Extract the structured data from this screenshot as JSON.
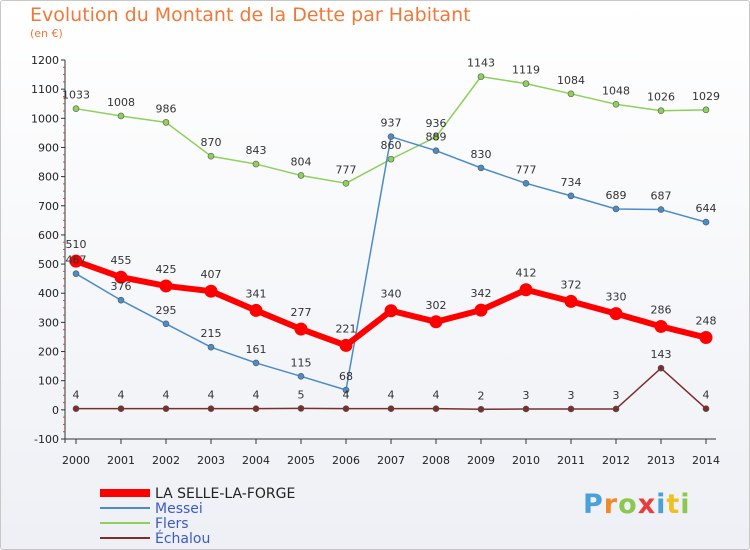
{
  "chart_data": {
    "type": "line",
    "title": "Evolution du Montant de la Dette par Habitant",
    "subtitle": "(en €)",
    "x": [
      "2000",
      "2001",
      "2002",
      "2003",
      "2004",
      "2005",
      "2006",
      "2007",
      "2008",
      "2009",
      "2010",
      "2011",
      "2012",
      "2013",
      "2014"
    ],
    "ylim": [
      -100,
      1200
    ],
    "yticks": [
      -100,
      0,
      100,
      200,
      300,
      400,
      500,
      600,
      700,
      800,
      900,
      1000,
      1100,
      1200
    ],
    "grid": false,
    "legend_position": "bottom-left",
    "series": [
      {
        "name": "LA SELLE-LA-FORGE",
        "color": "#ff0000",
        "values": [
          510,
          455,
          425,
          407,
          341,
          277,
          221,
          340,
          302,
          342,
          412,
          372,
          330,
          286,
          248
        ]
      },
      {
        "name": "Messei",
        "color": "#4a8cc8",
        "values": [
          467,
          376,
          295,
          215,
          161,
          115,
          68,
          937,
          889,
          830,
          777,
          734,
          689,
          687,
          644
        ],
        "labels": [
          "467",
          "376",
          "295",
          "215",
          "161",
          "115",
          "68",
          "937",
          "889",
          "830",
          "777",
          "734",
          "689",
          "687",
          "644"
        ]
      },
      {
        "name": "Flers",
        "color": "#8ed05a",
        "values": [
          1033,
          1008,
          986,
          870,
          843,
          804,
          777,
          860,
          936,
          1143,
          1119,
          1084,
          1048,
          1026,
          1029
        ]
      },
      {
        "name": "Échalou",
        "color": "#7a2e2e",
        "values": [
          4,
          4,
          4,
          4,
          4,
          5,
          4,
          4,
          4,
          2,
          3,
          3,
          3,
          143,
          4
        ]
      }
    ]
  },
  "logo": {
    "letters": [
      "P",
      "r",
      "o",
      "x",
      "i",
      "t",
      "i"
    ],
    "colors": [
      "#4aa0d8",
      "#f08a28",
      "#8cc850",
      "#e83c3c",
      "#4aa0d8",
      "#f0c020",
      "#8cc850"
    ]
  }
}
